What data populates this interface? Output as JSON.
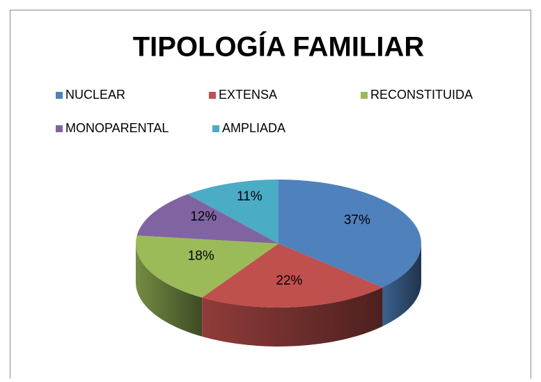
{
  "chart_data": {
    "type": "pie",
    "title": "TIPOLOGÍA FAMILIAR",
    "categories": [
      "NUCLEAR",
      "EXTENSA",
      "RECONSTITUIDA",
      "MONOPARENTAL",
      "AMPLIADA"
    ],
    "values": [
      37,
      22,
      18,
      12,
      11
    ],
    "value_labels": [
      "37%",
      "22%",
      "18%",
      "12%",
      "11%"
    ],
    "colors": [
      "#4f81bd",
      "#c0504d",
      "#9bbb59",
      "#8064a2",
      "#4bacc6"
    ],
    "legend": "top"
  }
}
